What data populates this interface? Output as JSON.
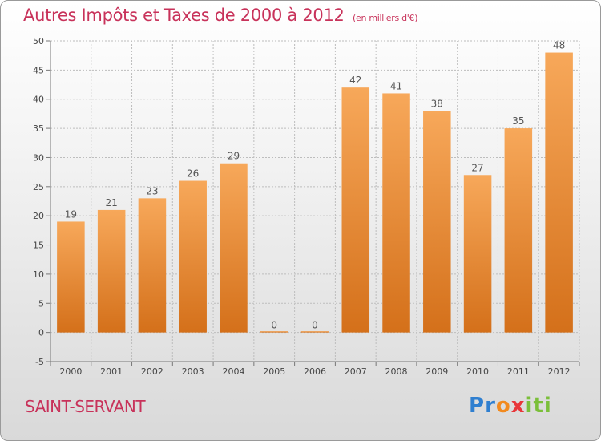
{
  "chart_data": {
    "type": "bar",
    "title": "Autres Impôts et Taxes de 2000 à 2012",
    "subtitle": "(en milliers d'€)",
    "categories": [
      "2000",
      "2001",
      "2002",
      "2003",
      "2004",
      "2005",
      "2006",
      "2007",
      "2008",
      "2009",
      "2010",
      "2011",
      "2012"
    ],
    "values": [
      19,
      21,
      23,
      26,
      29,
      0,
      0,
      42,
      41,
      38,
      27,
      35,
      48
    ],
    "value_labels": [
      "19",
      "21",
      "23",
      "26",
      "29",
      "0",
      "0",
      "42",
      "41",
      "38",
      "27",
      "35",
      "48"
    ],
    "ylim": [
      -5,
      50
    ],
    "yticks": [
      -5,
      0,
      5,
      10,
      15,
      20,
      25,
      30,
      35,
      40,
      45,
      50
    ],
    "ytick_labels": [
      "-5",
      "0",
      "5",
      "10",
      "15",
      "20",
      "25",
      "30",
      "35",
      "40",
      "45",
      "50"
    ],
    "grid": true,
    "bar_color": "#f0912e",
    "bar_color_light": "#f7a85a",
    "bar_color_dark": "#d4701a"
  },
  "footer": {
    "location": "SAINT-SERVANT",
    "logo_letters": [
      "P",
      "r",
      "o",
      "x",
      "i",
      "t",
      "i"
    ],
    "logo_colors": [
      "#2f7fd0",
      "#2f7fd0",
      "#f28a1e",
      "#e8363a",
      "#7bbf3a",
      "#7bbf3a",
      "#7bbf3a"
    ]
  },
  "colors": {
    "title": "#c8325a",
    "grid": "#bdbdbd"
  }
}
